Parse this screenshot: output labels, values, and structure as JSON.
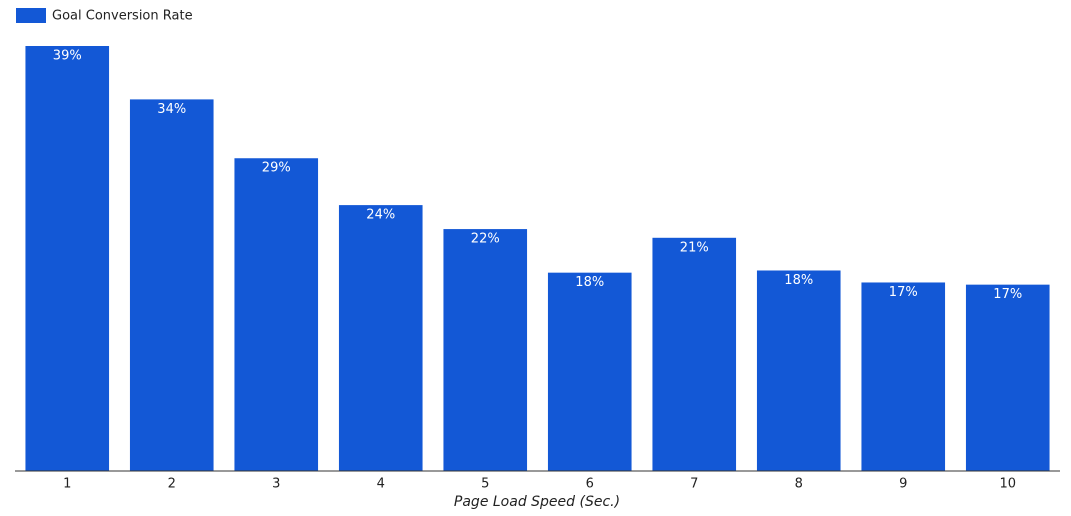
{
  "chart_data": {
    "type": "bar",
    "categories": [
      "1",
      "2",
      "3",
      "4",
      "5",
      "6",
      "7",
      "8",
      "9",
      "10"
    ],
    "series": [
      {
        "name": "Goal Conversion Rate",
        "color": "#1358d6",
        "values": [
          39,
          34.1,
          28.7,
          24.4,
          22.2,
          18.2,
          21.4,
          18.4,
          17.3,
          17.1
        ],
        "value_labels": [
          "39%",
          "34%",
          "29%",
          "24%",
          "22%",
          "18%",
          "21%",
          "18%",
          "17%",
          "17%"
        ]
      }
    ],
    "x_label": "Page Load Speed (Sec.)",
    "legend": "top-left"
  }
}
